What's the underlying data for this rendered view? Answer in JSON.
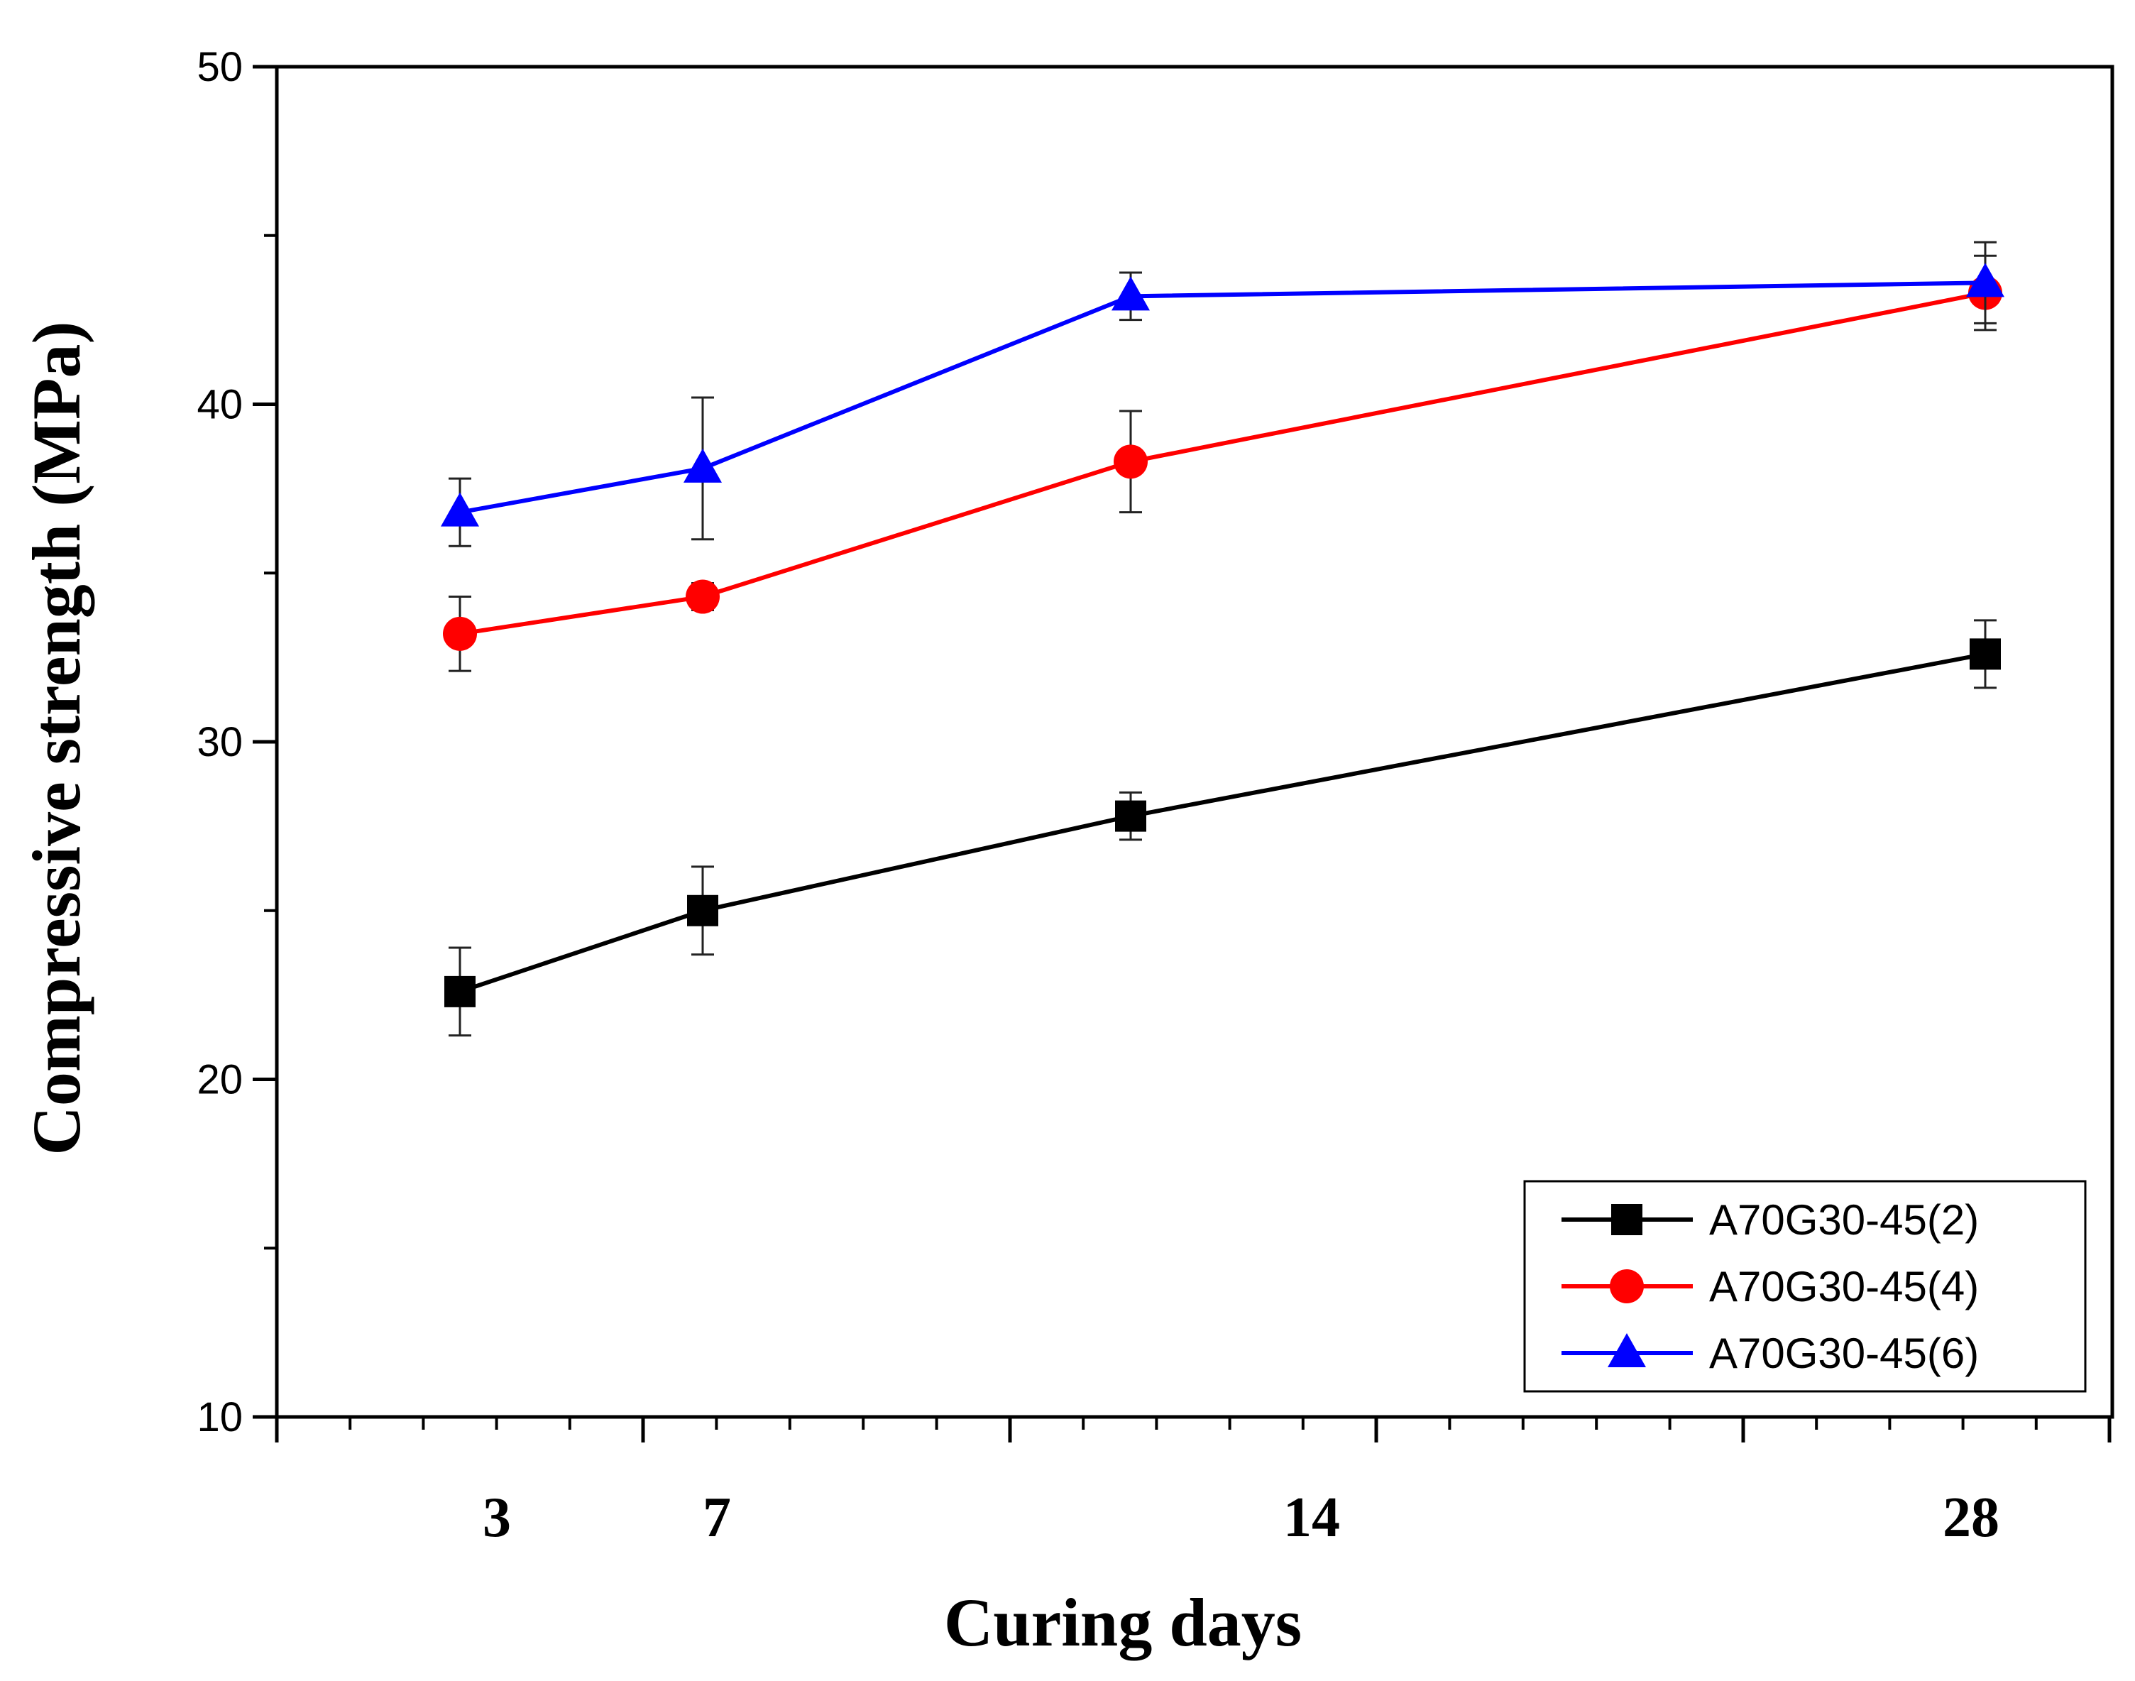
{
  "chart_data": {
    "type": "line",
    "title": "",
    "xlabel": "Curing days",
    "ylabel": "Compressive strength (MPa)",
    "ylim": [
      10,
      50
    ],
    "yticks": [
      10,
      20,
      30,
      40,
      50
    ],
    "xtick_labels": [
      "3",
      "7",
      "14",
      "28"
    ],
    "categories": [
      "3",
      "7",
      "14",
      "28"
    ],
    "grid": false,
    "legend_position": "bottom-right",
    "series": [
      {
        "name": "A70G30-45(2)",
        "color": "#000000",
        "marker": "square",
        "values": [
          22.6,
          25.0,
          27.8,
          32.6
        ],
        "errors": [
          1.3,
          1.3,
          0.7,
          1.0
        ]
      },
      {
        "name": "A70G30-45(4)",
        "color": "#ff0000",
        "marker": "circle",
        "values": [
          33.2,
          34.3,
          38.3,
          43.3
        ],
        "errors": [
          1.1,
          0.4,
          1.5,
          1.1
        ]
      },
      {
        "name": "A70G30-45(6)",
        "color": "#0000ff",
        "marker": "triangle",
        "values": [
          36.8,
          38.1,
          43.2,
          43.6
        ],
        "errors": [
          1.0,
          2.1,
          0.7,
          1.2
        ]
      }
    ]
  }
}
